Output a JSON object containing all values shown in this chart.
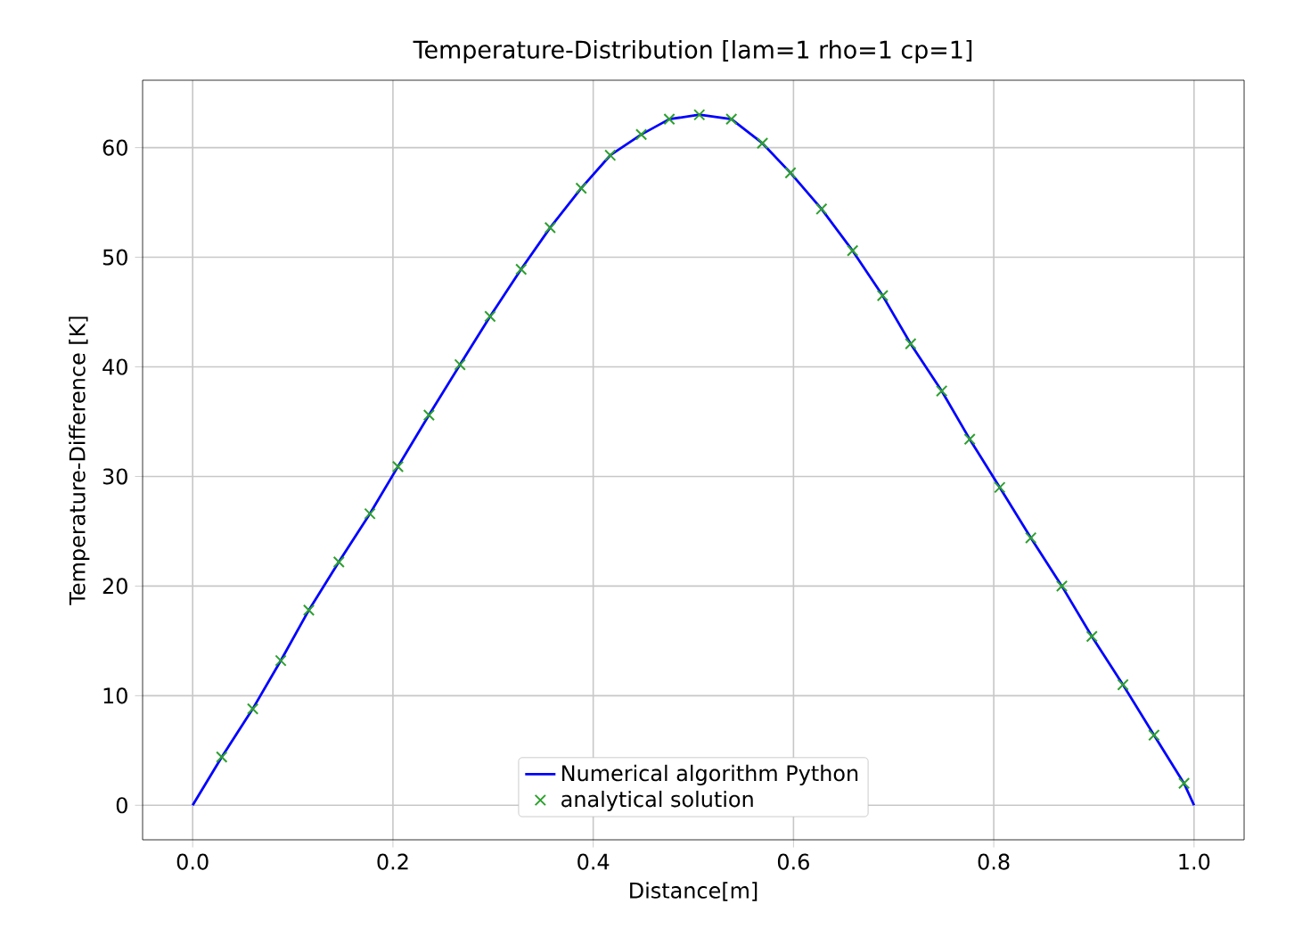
{
  "chart_data": {
    "type": "line",
    "title": "Temperature-Distribution [lam=1 rho=1 cp=1]",
    "xlabel": "Distance[m]",
    "ylabel": "Temperature-Difference [K]",
    "xlim": [
      -0.05,
      1.05
    ],
    "ylim": [
      -3.15,
      66.15
    ],
    "xticks": [
      {
        "value": 0,
        "label": "0.0"
      },
      {
        "value": 0.2,
        "label": "0.2"
      },
      {
        "value": 0.4,
        "label": "0.4"
      },
      {
        "value": 0.6,
        "label": "0.6"
      },
      {
        "value": 0.8,
        "label": "0.8"
      },
      {
        "value": 1.0,
        "label": "1.0"
      }
    ],
    "yticks": [
      0,
      10,
      20,
      30,
      40,
      50,
      60
    ],
    "grid": true,
    "legend": "bottom",
    "series": [
      {
        "name": "Numerical algorithm Python",
        "color": "#0000ff",
        "marker": "none",
        "x": [
          0,
          0.029,
          0.06,
          0.088,
          0.116,
          0.146,
          0.177,
          0.205,
          0.236,
          0.267,
          0.297,
          0.328,
          0.357,
          0.388,
          0.417,
          0.448,
          0.476,
          0.506,
          0.538,
          0.569,
          0.597,
          0.628,
          0.659,
          0.689,
          0.717,
          0.748,
          0.776,
          0.806,
          0.837,
          0.868,
          0.898,
          0.929,
          0.96,
          0.99,
          1.0
        ],
        "values": [
          0,
          4.4,
          8.8,
          13.2,
          17.8,
          22.2,
          26.6,
          30.9,
          35.6,
          40.2,
          44.6,
          48.9,
          52.7,
          56.3,
          59.3,
          61.2,
          62.6,
          63.0,
          62.6,
          60.4,
          57.7,
          54.4,
          50.6,
          46.5,
          42.1,
          37.8,
          33.4,
          29.0,
          24.4,
          20.0,
          15.4,
          11.0,
          6.4,
          2.0,
          0
        ]
      },
      {
        "name": "analytical solution",
        "type": "scatter",
        "color": "#2ca02c",
        "marker": "cross",
        "x": [
          0.029,
          0.06,
          0.088,
          0.116,
          0.146,
          0.177,
          0.205,
          0.236,
          0.267,
          0.297,
          0.328,
          0.357,
          0.388,
          0.417,
          0.448,
          0.476,
          0.506,
          0.538,
          0.569,
          0.597,
          0.628,
          0.659,
          0.689,
          0.717,
          0.748,
          0.776,
          0.806,
          0.837,
          0.868,
          0.898,
          0.929,
          0.96,
          0.99
        ],
        "values": [
          4.4,
          8.8,
          13.2,
          17.8,
          22.2,
          26.6,
          30.9,
          35.6,
          40.2,
          44.6,
          48.9,
          52.7,
          56.3,
          59.3,
          61.2,
          62.6,
          63.0,
          62.6,
          60.4,
          57.7,
          54.4,
          50.6,
          46.5,
          42.1,
          37.8,
          33.4,
          29.0,
          24.4,
          20.0,
          15.4,
          11.0,
          6.4,
          2.0
        ]
      }
    ]
  }
}
